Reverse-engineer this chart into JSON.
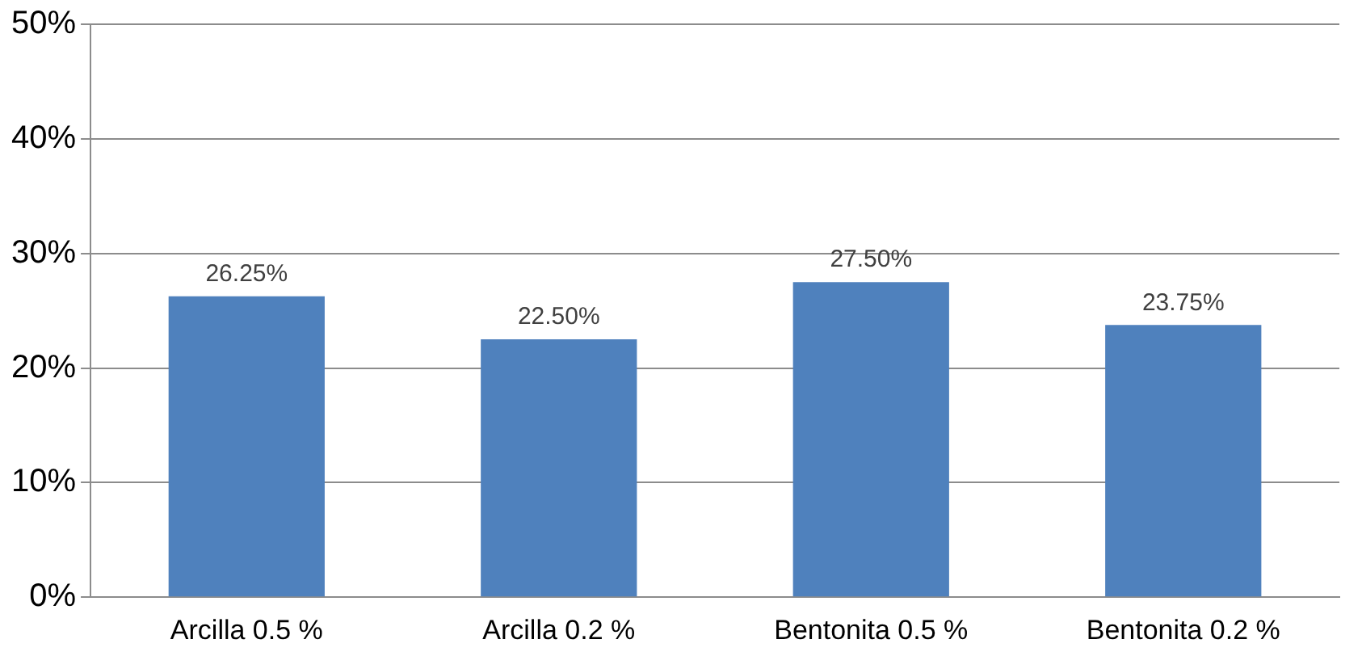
{
  "chart_data": {
    "type": "bar",
    "categories": [
      "Arcilla 0.5 %",
      "Arcilla 0.2 %",
      "Bentonita 0.5 %",
      "Bentonita 0.2 %"
    ],
    "values": [
      26.25,
      22.5,
      27.5,
      23.75
    ],
    "value_labels": [
      "26.25%",
      "22.50%",
      "27.50%",
      "23.75%"
    ],
    "color": "#4f81bd",
    "ylim": [
      0,
      50
    ],
    "yticks": [
      {
        "value": 0,
        "label": "0%"
      },
      {
        "value": 10,
        "label": "10%"
      },
      {
        "value": 20,
        "label": "20%"
      },
      {
        "value": 30,
        "label": "30%"
      },
      {
        "value": 40,
        "label": "40%"
      },
      {
        "value": 50,
        "label": "50%"
      }
    ],
    "grid": "y",
    "legend": false
  }
}
